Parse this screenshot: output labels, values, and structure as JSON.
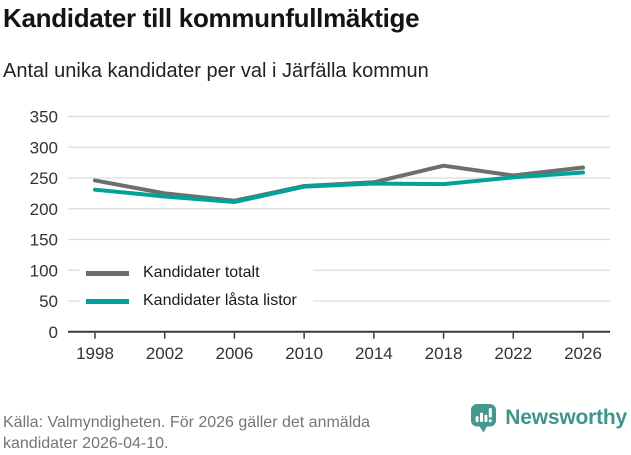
{
  "header": {
    "title": "Kandidater till kommunfullmäktige",
    "subtitle": "Antal unika kandidater per val i Järfälla kommun"
  },
  "chart_data": {
    "type": "line",
    "title": "Kandidater till kommunfullmäktige",
    "subtitle": "Antal unika kandidater per val i Järfälla kommun",
    "categories": [
      1998,
      2002,
      2006,
      2010,
      2014,
      2018,
      2022,
      2026
    ],
    "series": [
      {
        "name": "Kandidater totalt",
        "color": "#6e6e6e",
        "values": [
          246,
          225,
          213,
          237,
          243,
          270,
          254,
          267
        ]
      },
      {
        "name": "Kandidater låsta listor",
        "color": "#00a39b",
        "values": [
          231,
          220,
          211,
          236,
          241,
          240,
          251,
          259
        ]
      }
    ],
    "xlabel": "",
    "ylabel": "",
    "ylim": [
      0,
      350
    ],
    "ytick_step": 50,
    "grid": true,
    "legend_position": "inside-bottom-left"
  },
  "footer": {
    "source": "Källa: Valmyndigheten. För 2026 gäller det anmälda kandidater 2026-04-10.",
    "brand": "Newsworthy"
  },
  "colors": {
    "line_total_gray": "#6e6e6e",
    "line_locked_teal": "#00a39b",
    "gridline": "#dcdcdc",
    "axis": "#3a3a3a",
    "brand_teal": "#46978e"
  }
}
